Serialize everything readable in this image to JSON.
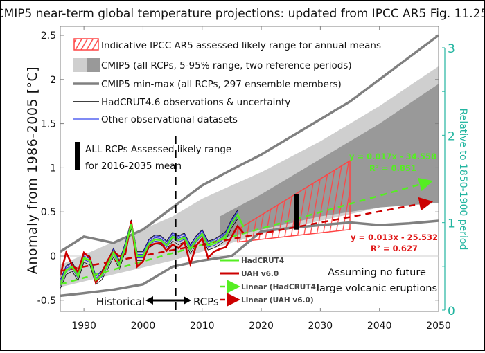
{
  "chart_data": {
    "type": "line",
    "title": "CMIP5 near-term global temperature projections: updated from IPCC AR5 Fig. 11.25",
    "xlabel": "",
    "ylabel": "Anomaly from 1986-2005  [°C]",
    "y2label": "Relative to 1850-1900 period",
    "xlim": [
      1986,
      2050
    ],
    "ylim": [
      -0.5,
      2.5
    ],
    "y2lim": [
      0,
      3
    ],
    "xticks": [
      "1990",
      "2000",
      "2010",
      "2020",
      "2030",
      "2040",
      "2050"
    ],
    "yticks": [
      "-0.5",
      "0",
      "0.5",
      "1",
      "1.5",
      "2",
      "2.5"
    ],
    "y2ticks": [
      "0",
      "1",
      "2",
      "3"
    ],
    "grid": false,
    "colors": {
      "hadcrut4": "#55ee22",
      "uah": "#cc0000",
      "ipcc_range": "#ff4444",
      "light_gray": "#cfcfcf",
      "dark_gray": "#999999",
      "minmax": "#808080",
      "other_obs": "#2222dd",
      "right_axis": "#22b5a0"
    },
    "legend_top": [
      {
        "key": "ipcc",
        "label": "Indicative IPCC AR5 assessed likely range for annual means"
      },
      {
        "key": "cmip5_range",
        "label": "CMIP5 (all RCPs, 5-95% range, two reference periods)"
      },
      {
        "key": "cmip5_minmax",
        "label": "CMIP5 min-max (all RCPs, 297 ensemble members)"
      },
      {
        "key": "hadcrut46",
        "label": "HadCRUT4.6 observations & uncertainty"
      },
      {
        "key": "other_obs",
        "label": "Other observational datasets"
      }
    ],
    "legend_bar": {
      "line1": "ALL RCPs Assessed likely range",
      "line2": "for 2016-2035 mean"
    },
    "legend_bottom": [
      {
        "key": "hadcrut4",
        "label": "HadCRUT4"
      },
      {
        "key": "uah",
        "label": "UAH v6.0"
      },
      {
        "key": "lin_hadcrut4",
        "label": "Linear (HadCRUT4)"
      },
      {
        "key": "lin_uah",
        "label": "Linear (UAH v6.0)"
      }
    ],
    "annotations": {
      "volcanic_line1": "Assuming no future",
      "volcanic_line2": "large volcanic eruptions",
      "historical": "Historical",
      "rcps": "RCPs",
      "fit_hadcrut4_eq": "y = 0.017x - 34.558",
      "fit_hadcrut4_r2": "R² = 0.851",
      "fit_uah_eq": "y = 0.013x - 25.532",
      "fit_uah_r2": "R² = 0.627"
    },
    "series": [
      {
        "name": "HadCRUT4",
        "x": [
          1986,
          1987,
          1988,
          1989,
          1990,
          1991,
          1992,
          1993,
          1994,
          1995,
          1996,
          1997,
          1998,
          1999,
          2000,
          2001,
          2002,
          2003,
          2004,
          2005,
          2006,
          2007,
          2008,
          2009,
          2010,
          2011,
          2012,
          2013,
          2014,
          2015,
          2016,
          2017
        ],
        "values": [
          -0.32,
          -0.16,
          -0.12,
          -0.23,
          -0.02,
          -0.05,
          -0.27,
          -0.22,
          -0.1,
          0.04,
          -0.1,
          0.1,
          0.36,
          0.0,
          0.0,
          0.14,
          0.19,
          0.18,
          0.12,
          0.22,
          0.18,
          0.21,
          0.08,
          0.18,
          0.25,
          0.12,
          0.14,
          0.18,
          0.23,
          0.37,
          0.47,
          0.33
        ]
      },
      {
        "name": "UAH v6.0",
        "x": [
          1986,
          1987,
          1988,
          1989,
          1990,
          1991,
          1992,
          1993,
          1994,
          1995,
          1996,
          1997,
          1998,
          1999,
          2000,
          2001,
          2002,
          2003,
          2004,
          2005,
          2006,
          2007,
          2008,
          2009,
          2010,
          2011,
          2012,
          2013,
          2014,
          2015,
          2016,
          2017
        ],
        "values": [
          -0.22,
          0.04,
          -0.1,
          -0.18,
          0.04,
          -0.02,
          -0.3,
          -0.2,
          -0.05,
          0.05,
          0.0,
          0.02,
          0.4,
          -0.12,
          -0.06,
          0.12,
          0.14,
          0.15,
          0.06,
          0.13,
          0.09,
          0.16,
          -0.09,
          0.12,
          0.2,
          -0.02,
          0.05,
          0.08,
          0.1,
          0.22,
          0.34,
          0.26
        ]
      },
      {
        "name": "Linear (HadCRUT4)",
        "x": [
          1986,
          2050
        ],
        "values": [
          -0.32,
          0.87
        ]
      },
      {
        "name": "Linear (UAH v6.0)",
        "x": [
          1986,
          2050
        ],
        "values": [
          -0.17,
          0.63
        ]
      },
      {
        "name": "CMIP5 min",
        "x": [
          1986,
          1990,
          1995,
          2000,
          2005,
          2010,
          2015,
          2020,
          2025,
          2030,
          2035,
          2040,
          2045,
          2050
        ],
        "values": [
          -0.45,
          -0.42,
          -0.38,
          -0.32,
          -0.12,
          -0.05,
          0.0,
          0.28,
          0.32,
          0.35,
          0.38,
          0.35,
          0.37,
          0.4
        ]
      },
      {
        "name": "CMIP5 max",
        "x": [
          1986,
          1990,
          1995,
          2000,
          2005,
          2010,
          2015,
          2020,
          2025,
          2030,
          2035,
          2040,
          2045,
          2050
        ],
        "values": [
          0.05,
          0.22,
          0.15,
          0.3,
          0.55,
          0.8,
          0.98,
          1.15,
          1.35,
          1.55,
          1.75,
          2.0,
          2.25,
          2.5
        ]
      },
      {
        "name": "CMIP5 5-95% light (lower)",
        "x": [
          1986,
          2005,
          2010,
          2015,
          2020,
          2030,
          2040,
          2050
        ],
        "values": [
          -0.35,
          -0.05,
          0.05,
          0.15,
          0.25,
          0.4,
          0.55,
          0.65
        ]
      },
      {
        "name": "CMIP5 5-95% light (upper)",
        "x": [
          1986,
          2005,
          2010,
          2015,
          2020,
          2030,
          2040,
          2050
        ],
        "values": [
          -0.1,
          0.45,
          0.65,
          0.8,
          0.95,
          1.3,
          1.7,
          2.15
        ]
      },
      {
        "name": "CMIP5 5-95% dark (lower)",
        "x": [
          2013,
          2020,
          2030,
          2040,
          2050
        ],
        "values": [
          0.2,
          0.3,
          0.45,
          0.55,
          0.6
        ]
      },
      {
        "name": "CMIP5 5-95% dark (upper)",
        "x": [
          2013,
          2020,
          2030,
          2040,
          2050
        ],
        "values": [
          0.45,
          0.7,
          1.1,
          1.5,
          1.95
        ]
      },
      {
        "name": "IPCC AR5 likely range",
        "x": [
          2016,
          2035
        ],
        "lower": [
          0.16,
          0.3
        ],
        "upper": [
          0.3,
          1.08
        ]
      },
      {
        "name": "Assessed 2016-2035 mean",
        "x": [
          2026
        ],
        "lower": [
          0.3
        ],
        "upper": [
          0.7
        ]
      }
    ]
  }
}
